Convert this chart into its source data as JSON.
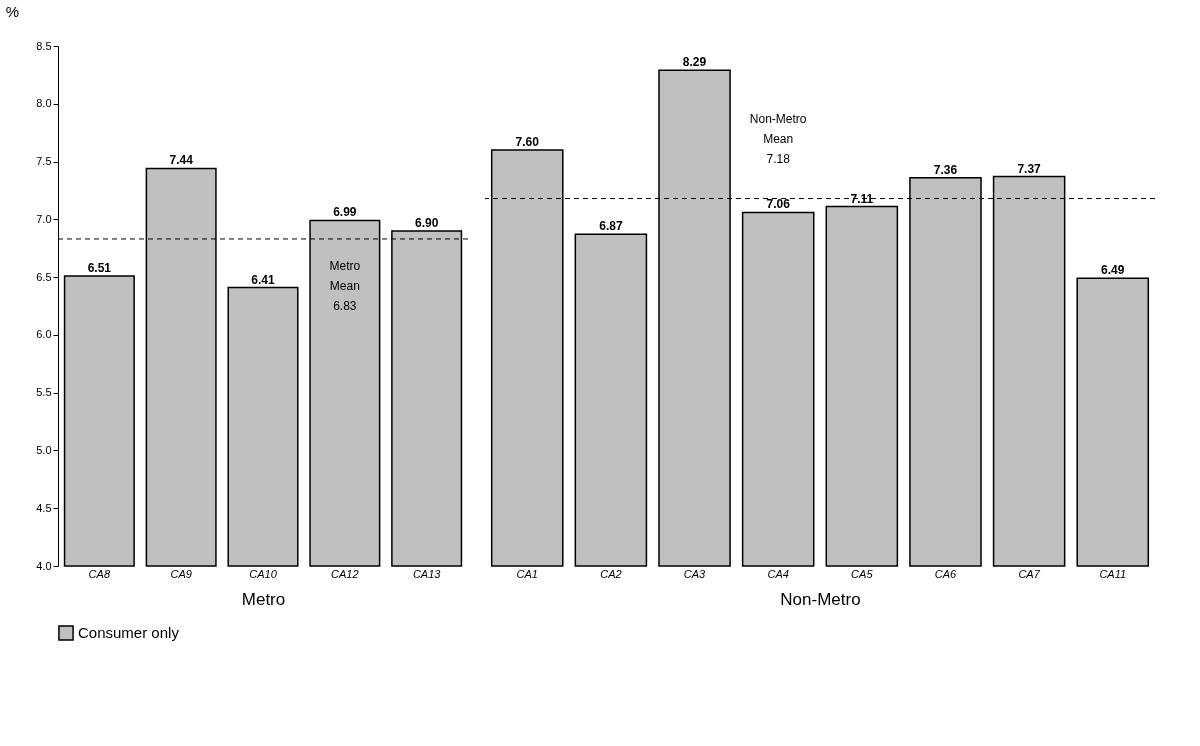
{
  "chart_data": [
    {
      "type": "bar",
      "xlabel": "Metro",
      "ylabel": "%",
      "categories": [
        "CA8",
        "CA9",
        "CA10",
        "CA12",
        "CA13"
      ],
      "series": [
        {
          "name": "Consumer only",
          "color": "#c0c0c0",
          "values": [
            6.51,
            7.44,
            6.41,
            6.99,
            6.9
          ],
          "value_labels": [
            "6.51",
            "7.44",
            "6.41",
            "6.99",
            "6.90"
          ]
        }
      ],
      "ylim": [
        4.0,
        8.5
      ],
      "yticks": [
        {
          "value": 4,
          "label": "4.0"
        },
        {
          "value": 4.5,
          "label": "4.5"
        },
        {
          "value": 5,
          "label": "5.0"
        },
        {
          "value": 5.5,
          "label": "5.5"
        },
        {
          "value": 6,
          "label": "6.0"
        },
        {
          "value": 6.5,
          "label": "6.5"
        },
        {
          "value": 7,
          "label": "7.0"
        },
        {
          "value": 7.5,
          "label": "7.5"
        },
        {
          "value": 8,
          "label": "8.0"
        },
        {
          "value": 8.5,
          "label": "8.5"
        }
      ],
      "legend": "bottom",
      "grid": false,
      "ref_lines": [
        {
          "axis": "y",
          "value": 6.83,
          "label": "Metro Mean 6.83",
          "line_style": "dashed",
          "color": "#000000"
        }
      ]
    },
    {
      "type": "bar",
      "xlabel": "Non-Metro",
      "categories": [
        "CA1",
        "CA2",
        "CA3",
        "CA4",
        "CA5",
        "CA6",
        "CA7",
        "CA11"
      ],
      "series": [
        {
          "color": "#c0c0c0",
          "values": [
            7.6,
            6.87,
            8.29,
            7.06,
            7.11,
            7.36,
            7.37,
            6.49
          ],
          "value_labels": [
            "7.60",
            "6.87",
            "8.29",
            "7.06",
            "7.11",
            "7.36",
            "7.37",
            "6.49"
          ]
        }
      ],
      "ylim": [
        4.0,
        8.5
      ],
      "tick_labels": "x",
      "grid": false,
      "ref_lines": [
        {
          "axis": "y",
          "value": 7.18,
          "label": "Non-Metro Mean 7.18",
          "line_style": "dashed",
          "color": "#000000"
        }
      ]
    }
  ]
}
